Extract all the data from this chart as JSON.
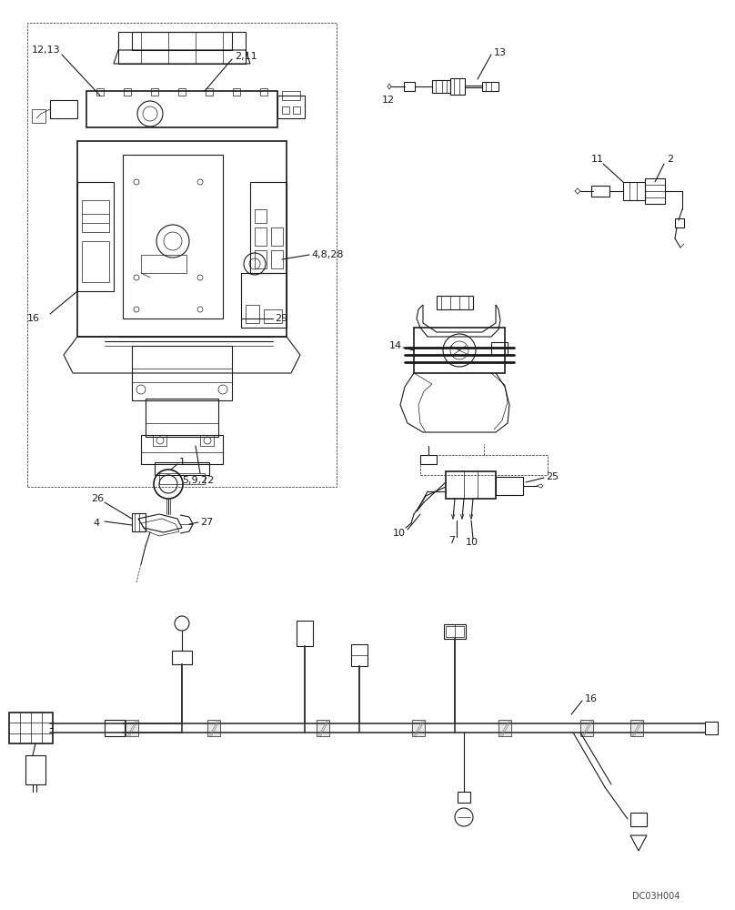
{
  "bg_color": "#ffffff",
  "line_color": "#1a1a1a",
  "label_color": "#1a1a1a",
  "watermark": "DC03H004",
  "fig_width": 8.08,
  "fig_height": 10.0,
  "dpi": 100
}
